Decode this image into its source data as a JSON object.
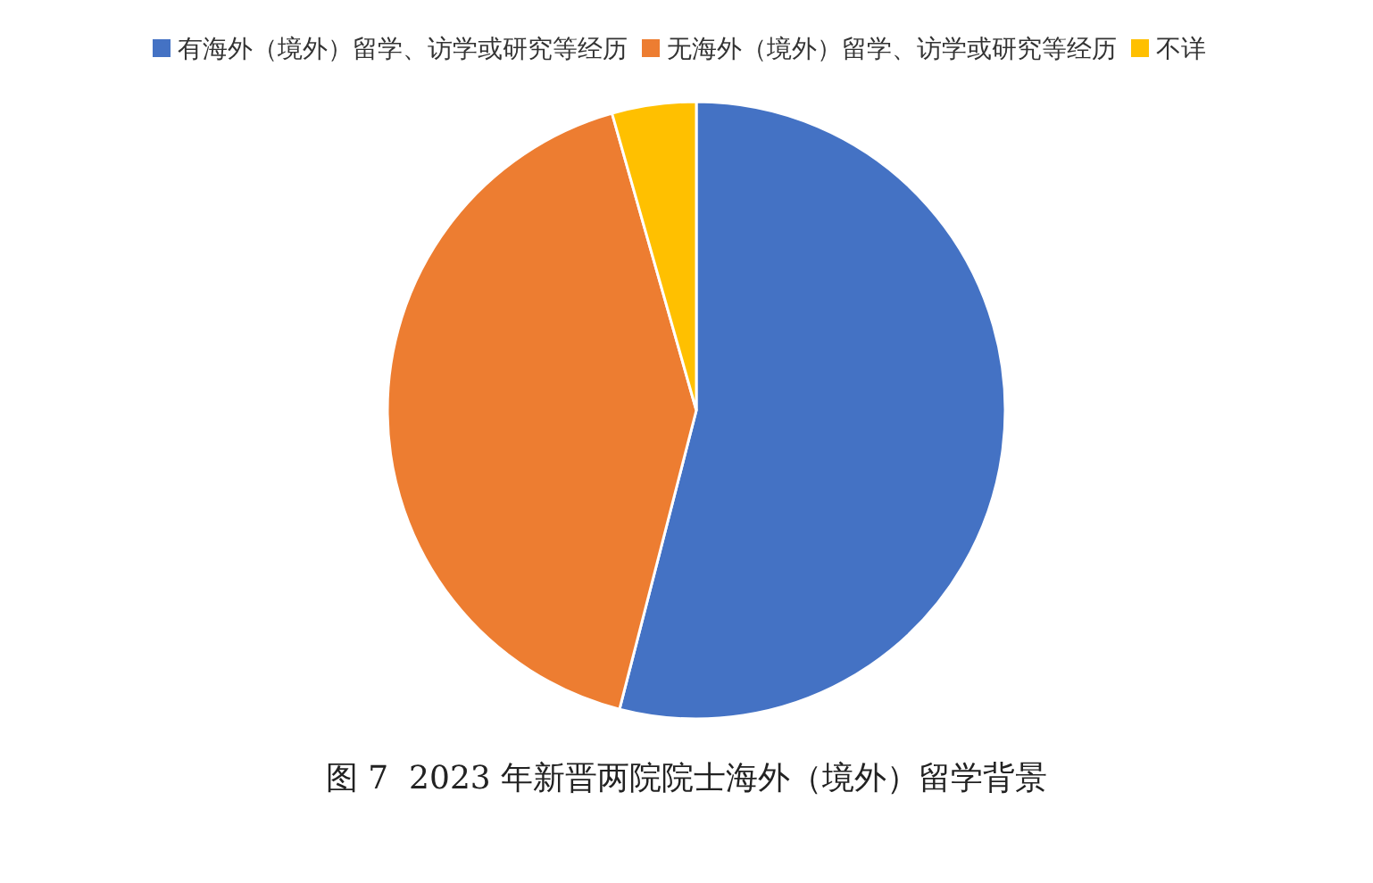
{
  "chart_data": {
    "type": "pie",
    "title": "图 7  2023 年新晋两院院士海外（境外）留学背景",
    "categories": [
      "有海外（境外）留学、访学或研究等经历",
      "无海外（境外）留学、访学或研究等经历",
      "不详"
    ],
    "values": [
      54,
      41.6,
      4.4
    ],
    "colors": [
      "#4472c4",
      "#ed7d31",
      "#ffc000"
    ],
    "legend": "top"
  }
}
